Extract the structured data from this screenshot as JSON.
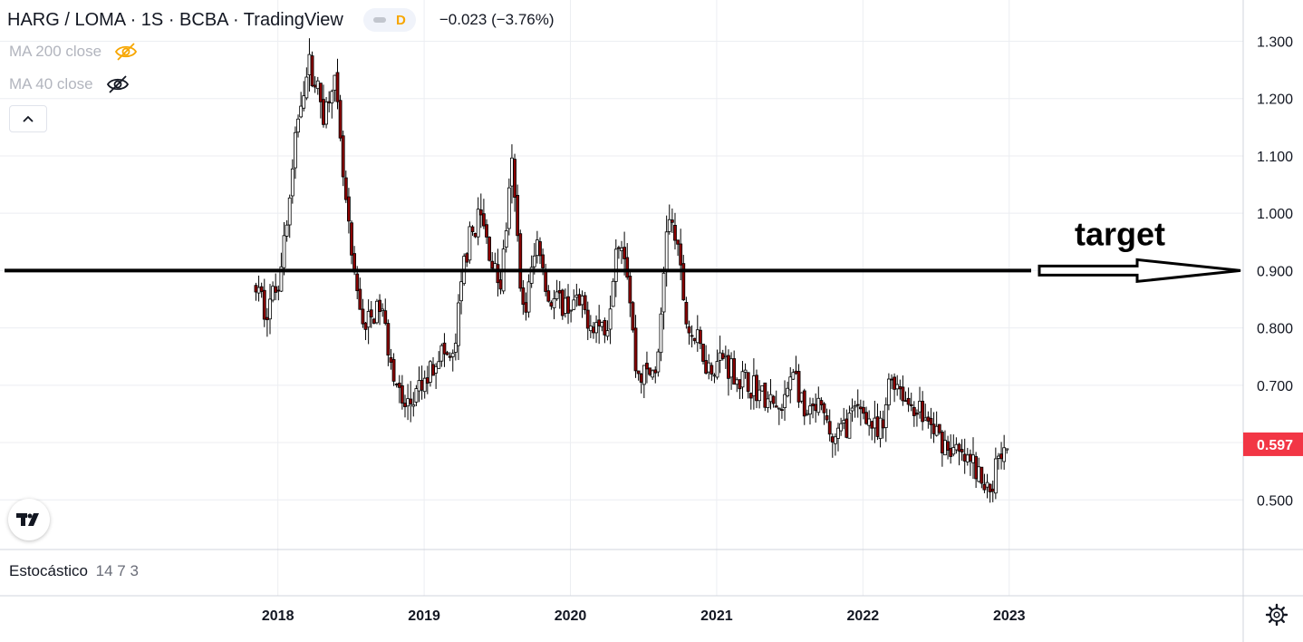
{
  "header": {
    "symbol": "HARG / LOMA · 1S · BCBA · TradingView",
    "indicator_letter": "D",
    "change": "−0.023 (−3.76%)"
  },
  "indicators": [
    {
      "label": "MA 200 close",
      "icon": "eye-slash-icon",
      "icon_color": "#f7a600"
    },
    {
      "label": "MA 40 close",
      "icon": "eye-slash-icon",
      "icon_color": "#131722"
    }
  ],
  "stochastic": {
    "name": "Estocástico",
    "params": "14 7 3"
  },
  "annotation": {
    "text": "target",
    "level": 0.9
  },
  "last_price": {
    "label": "0.597",
    "value": 0.597,
    "color": "#f23645"
  },
  "colors": {
    "candle_up": "#ffffff",
    "candle_down": "#8b0000",
    "outline": "#000000",
    "grid": "#eceef2",
    "axis": "#d1d4dc"
  },
  "chart_data": {
    "type": "candlestick",
    "y_ticks": [
      "1.300",
      "1.200",
      "1.100",
      "1.000",
      "0.900",
      "0.800",
      "0.700",
      "0.600",
      "0.500"
    ],
    "y_tick_values": [
      1.3,
      1.2,
      1.1,
      1.0,
      0.9,
      0.8,
      0.7,
      0.6,
      0.5
    ],
    "y_range": [
      0.415,
      1.372
    ],
    "x_ticks": [
      "2018",
      "2019",
      "2020",
      "2021",
      "2022",
      "2023"
    ],
    "x_tick_years": [
      2018,
      2019,
      2020,
      2021,
      2022,
      2023
    ],
    "x_range": [
      2016.1,
      2024.6
    ],
    "horizontal_line": 0.9,
    "price_path": [
      [
        2017.85,
        0.87
      ],
      [
        2017.92,
        0.83
      ],
      [
        2018.0,
        0.88
      ],
      [
        2018.08,
        1.02
      ],
      [
        2018.15,
        1.2
      ],
      [
        2018.22,
        1.26
      ],
      [
        2018.32,
        1.17
      ],
      [
        2018.38,
        1.25
      ],
      [
        2018.45,
        1.05
      ],
      [
        2018.52,
        0.88
      ],
      [
        2018.6,
        0.8
      ],
      [
        2018.7,
        0.84
      ],
      [
        2018.78,
        0.74
      ],
      [
        2018.85,
        0.66
      ],
      [
        2018.92,
        0.67
      ],
      [
        2019.0,
        0.7
      ],
      [
        2019.1,
        0.76
      ],
      [
        2019.2,
        0.74
      ],
      [
        2019.28,
        0.93
      ],
      [
        2019.38,
        1.0
      ],
      [
        2019.45,
        0.93
      ],
      [
        2019.52,
        0.87
      ],
      [
        2019.6,
        1.08
      ],
      [
        2019.68,
        0.82
      ],
      [
        2019.78,
        0.96
      ],
      [
        2019.85,
        0.85
      ],
      [
        2019.95,
        0.84
      ],
      [
        2020.05,
        0.84
      ],
      [
        2020.15,
        0.81
      ],
      [
        2020.25,
        0.8
      ],
      [
        2020.32,
        0.97
      ],
      [
        2020.38,
        0.93
      ],
      [
        2020.45,
        0.72
      ],
      [
        2020.55,
        0.72
      ],
      [
        2020.6,
        0.74
      ],
      [
        2020.66,
        0.99
      ],
      [
        2020.72,
        0.96
      ],
      [
        2020.8,
        0.8
      ],
      [
        2020.88,
        0.77
      ],
      [
        2020.95,
        0.73
      ],
      [
        2021.05,
        0.75
      ],
      [
        2021.15,
        0.71
      ],
      [
        2021.25,
        0.7
      ],
      [
        2021.35,
        0.67
      ],
      [
        2021.45,
        0.65
      ],
      [
        2021.52,
        0.74
      ],
      [
        2021.6,
        0.64
      ],
      [
        2021.7,
        0.66
      ],
      [
        2021.8,
        0.6
      ],
      [
        2021.9,
        0.64
      ],
      [
        2022.0,
        0.66
      ],
      [
        2022.1,
        0.61
      ],
      [
        2022.15,
        0.63
      ],
      [
        2022.18,
        0.72
      ],
      [
        2022.25,
        0.7
      ],
      [
        2022.3,
        0.67
      ],
      [
        2022.38,
        0.66
      ],
      [
        2022.45,
        0.63
      ],
      [
        2022.52,
        0.61
      ],
      [
        2022.6,
        0.59
      ],
      [
        2022.68,
        0.57
      ],
      [
        2022.76,
        0.56
      ],
      [
        2022.82,
        0.52
      ],
      [
        2022.88,
        0.52
      ],
      [
        2022.93,
        0.59
      ],
      [
        2022.97,
        0.6
      ],
      [
        2023.0,
        0.597
      ]
    ],
    "grid": true
  }
}
